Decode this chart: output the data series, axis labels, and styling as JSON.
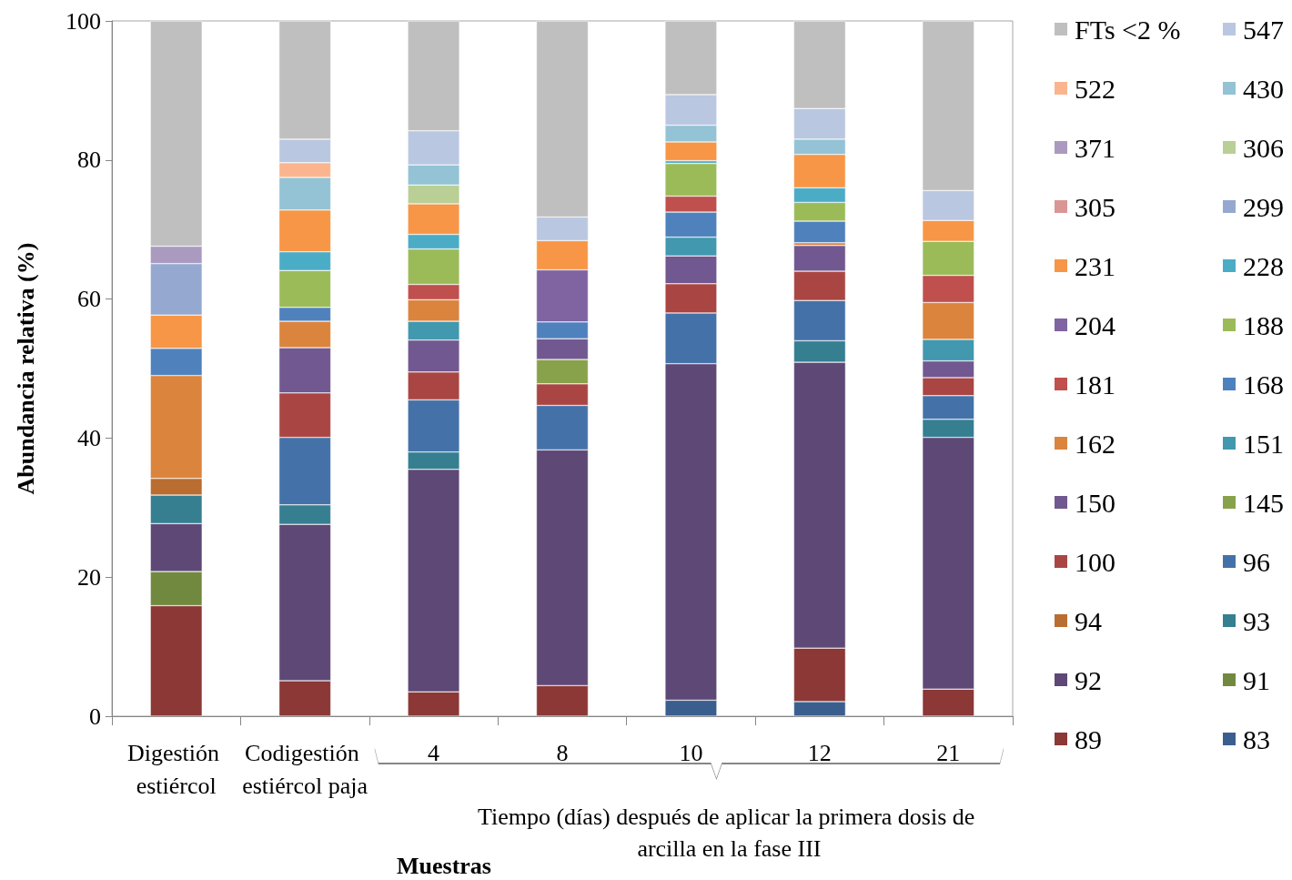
{
  "chart_data": {
    "type": "bar",
    "stacked": true,
    "ylabel": "Abundancia relativa (%)",
    "xlabel": "Muestras",
    "annotations": [
      "Tiempo (días) después de aplicar la primera dosis de arcilla en la fase III"
    ],
    "categories": [
      "Digestión estiércol",
      "Codigestión estiércol paja",
      "4",
      "8",
      "10",
      "12",
      "21"
    ],
    "ylim": [
      0,
      100
    ],
    "yticks": [
      0,
      20,
      40,
      60,
      80,
      100
    ],
    "grid": false,
    "legend": "right",
    "series": [
      {
        "name": "83",
        "color": "#3a5f8e",
        "values": [
          null,
          null,
          null,
          null,
          2.3,
          2.1,
          null
        ]
      },
      {
        "name": "89",
        "color": "#8b3836",
        "values": [
          15.9,
          5.1,
          3.5,
          4.4,
          null,
          7.7,
          3.9
        ]
      },
      {
        "name": "91",
        "color": "#71893f",
        "values": [
          4.9,
          null,
          null,
          null,
          null,
          null,
          null
        ]
      },
      {
        "name": "92",
        "color": "#5e4876",
        "values": [
          6.9,
          22.5,
          32.0,
          33.9,
          48.4,
          41.1,
          36.2
        ]
      },
      {
        "name": "93",
        "color": "#357f91",
        "values": [
          4.1,
          2.8,
          2.5,
          null,
          null,
          3.1,
          2.6
        ]
      },
      {
        "name": "94",
        "color": "#b96d31",
        "values": [
          2.4,
          null,
          null,
          null,
          null,
          null,
          null
        ]
      },
      {
        "name": "96",
        "color": "#4472a8",
        "values": [
          null,
          9.7,
          7.5,
          6.4,
          7.3,
          5.8,
          3.4
        ]
      },
      {
        "name": "100",
        "color": "#a94643",
        "values": [
          null,
          6.4,
          4.0,
          3.1,
          4.2,
          4.2,
          2.6
        ]
      },
      {
        "name": "145",
        "color": "#88a24c",
        "values": [
          null,
          null,
          null,
          3.5,
          null,
          null,
          null
        ]
      },
      {
        "name": "150",
        "color": "#725890",
        "values": [
          null,
          6.5,
          4.6,
          3.0,
          4.0,
          3.7,
          2.4
        ]
      },
      {
        "name": "151",
        "color": "#4298ae",
        "values": [
          null,
          null,
          2.7,
          null,
          2.7,
          null,
          3.1
        ]
      },
      {
        "name": "162",
        "color": "#db843d",
        "values": [
          14.8,
          3.8,
          3.1,
          null,
          null,
          0.4,
          5.3
        ]
      },
      {
        "name": "168",
        "color": "#4f81bd",
        "values": [
          3.9,
          2.0,
          null,
          2.4,
          3.6,
          3.1,
          null
        ]
      },
      {
        "name": "181",
        "color": "#c0504d",
        "values": [
          null,
          null,
          2.2,
          null,
          2.3,
          null,
          3.9
        ]
      },
      {
        "name": "188",
        "color": "#9bbb59",
        "values": [
          null,
          5.3,
          5.1,
          null,
          4.7,
          2.7,
          4.9
        ]
      },
      {
        "name": "204",
        "color": "#8064a2",
        "values": [
          null,
          null,
          null,
          7.5,
          null,
          null,
          null
        ]
      },
      {
        "name": "228",
        "color": "#4bacc6",
        "values": [
          null,
          2.7,
          2.1,
          null,
          0.4,
          2.1,
          null
        ]
      },
      {
        "name": "231",
        "color": "#f79646",
        "values": [
          4.8,
          6.0,
          4.4,
          4.2,
          2.7,
          4.8,
          3.0
        ]
      },
      {
        "name": "299",
        "color": "#95a9d0",
        "values": [
          7.4,
          null,
          null,
          null,
          null,
          null,
          null
        ]
      },
      {
        "name": "305",
        "color": "#d99694",
        "values": [
          null,
          null,
          null,
          null,
          null,
          null,
          null
        ]
      },
      {
        "name": "306",
        "color": "#b9cf95",
        "values": [
          null,
          null,
          2.7,
          null,
          null,
          null,
          null
        ]
      },
      {
        "name": "371",
        "color": "#ab9ac0",
        "values": [
          2.5,
          null,
          null,
          null,
          null,
          null,
          null
        ]
      },
      {
        "name": "430",
        "color": "#93c3d5",
        "values": [
          null,
          4.7,
          2.9,
          null,
          2.4,
          2.2,
          null
        ]
      },
      {
        "name": "522",
        "color": "#fab58e",
        "values": [
          null,
          2.1,
          null,
          null,
          null,
          null,
          null
        ]
      },
      {
        "name": "547",
        "color": "#bac7e0",
        "values": [
          null,
          3.4,
          4.9,
          3.4,
          4.4,
          4.4,
          4.3
        ]
      },
      {
        "name": "FTs <2 %",
        "color": "#bfbfbf",
        "values": [
          32.4,
          17.0,
          15.8,
          28.2,
          10.6,
          12.6,
          24.4
        ]
      }
    ]
  }
}
